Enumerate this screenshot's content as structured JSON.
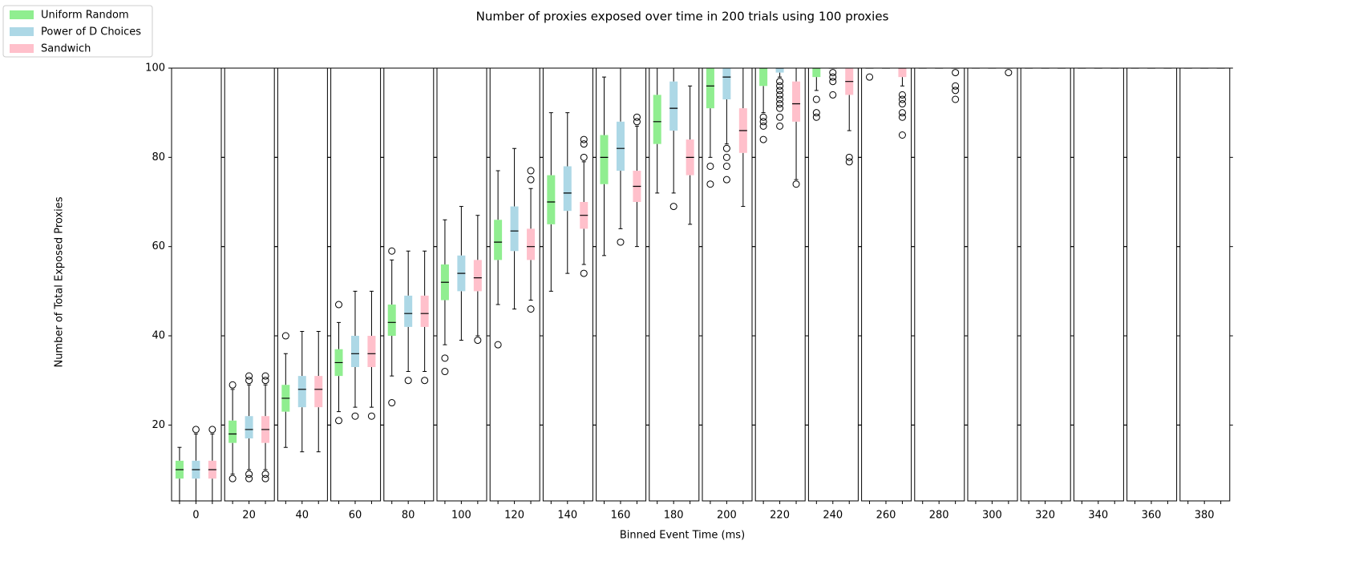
{
  "chart_data": {
    "type": "box",
    "title": "Number of proxies exposed over time in 200 trials using 100 proxies",
    "x_label": "Binned Event Time (ms)",
    "y_label": "Number of Total Exposed Proxies",
    "categories": [
      0,
      20,
      40,
      60,
      80,
      100,
      120,
      140,
      160,
      180,
      200,
      220,
      240,
      260,
      280,
      300,
      320,
      340,
      360,
      380
    ],
    "ylim": [
      3,
      100
    ],
    "yticks": [
      20,
      40,
      60,
      80,
      100
    ],
    "legend": "upper-left",
    "series": [
      {
        "name": "Uniform Random",
        "color": "#90ee90",
        "boxes": [
          {
            "low": 1,
            "q1": 8,
            "median": 10,
            "q3": 12,
            "high": 15,
            "fliers": []
          },
          {
            "low": 9,
            "q1": 16,
            "median": 18,
            "q3": 21,
            "high": 28,
            "fliers": [
              29,
              8
            ]
          },
          {
            "low": 15,
            "q1": 23,
            "median": 26,
            "q3": 29,
            "high": 36,
            "fliers": [
              40
            ]
          },
          {
            "low": 23,
            "q1": 31,
            "median": 34,
            "q3": 37,
            "high": 43,
            "fliers": [
              47,
              21
            ]
          },
          {
            "low": 31,
            "q1": 40,
            "median": 43,
            "q3": 47,
            "high": 57,
            "fliers": [
              59,
              25
            ]
          },
          {
            "low": 38,
            "q1": 48,
            "median": 52,
            "q3": 56,
            "high": 66,
            "fliers": [
              35,
              32
            ]
          },
          {
            "low": 47,
            "q1": 57,
            "median": 61,
            "q3": 66,
            "high": 77,
            "fliers": [
              38
            ]
          },
          {
            "low": 50,
            "q1": 65,
            "median": 70,
            "q3": 76,
            "high": 90,
            "fliers": []
          },
          {
            "low": 58,
            "q1": 74,
            "median": 80,
            "q3": 85,
            "high": 98,
            "fliers": []
          },
          {
            "low": 72,
            "q1": 83,
            "median": 88,
            "q3": 94,
            "high": 100,
            "fliers": []
          },
          {
            "low": 80,
            "q1": 91,
            "median": 96,
            "q3": 100,
            "high": 100,
            "fliers": [
              78,
              74
            ]
          },
          {
            "low": 90,
            "q1": 96,
            "median": 100,
            "q3": 100,
            "high": 100,
            "fliers": [
              89,
              88,
              87,
              84
            ]
          },
          {
            "low": 95,
            "q1": 98,
            "median": 100,
            "q3": 100,
            "high": 100,
            "fliers": [
              93,
              90,
              89
            ]
          },
          {
            "low": 100,
            "q1": 100,
            "median": 100,
            "q3": 100,
            "high": 100,
            "fliers": [
              98
            ]
          },
          {
            "low": 100,
            "q1": 100,
            "median": 100,
            "q3": 100,
            "high": 100,
            "fliers": []
          },
          {
            "low": 100,
            "q1": 100,
            "median": 100,
            "q3": 100,
            "high": 100,
            "fliers": []
          },
          {
            "low": 100,
            "q1": 100,
            "median": 100,
            "q3": 100,
            "high": 100,
            "fliers": []
          },
          {
            "low": 100,
            "q1": 100,
            "median": 100,
            "q3": 100,
            "high": 100,
            "fliers": []
          },
          {
            "low": 100,
            "q1": 100,
            "median": 100,
            "q3": 100,
            "high": 100,
            "fliers": []
          },
          {
            "low": 100,
            "q1": 100,
            "median": 100,
            "q3": 100,
            "high": 100,
            "fliers": []
          }
        ]
      },
      {
        "name": "Power of D Choices",
        "color": "#add8e6",
        "boxes": [
          {
            "low": 1,
            "q1": 8,
            "median": 10,
            "q3": 12,
            "high": 18,
            "fliers": [
              19
            ]
          },
          {
            "low": 10,
            "q1": 17,
            "median": 19,
            "q3": 22,
            "high": 29,
            "fliers": [
              30,
              31,
              9,
              8
            ]
          },
          {
            "low": 14,
            "q1": 24,
            "median": 28,
            "q3": 31,
            "high": 41,
            "fliers": []
          },
          {
            "low": 24,
            "q1": 33,
            "median": 36,
            "q3": 40,
            "high": 50,
            "fliers": [
              22
            ]
          },
          {
            "low": 32,
            "q1": 42,
            "median": 45,
            "q3": 49,
            "high": 59,
            "fliers": [
              30
            ]
          },
          {
            "low": 39,
            "q1": 50,
            "median": 54,
            "q3": 58,
            "high": 69,
            "fliers": []
          },
          {
            "low": 46,
            "q1": 59,
            "median": 63.5,
            "q3": 69,
            "high": 82,
            "fliers": []
          },
          {
            "low": 54,
            "q1": 68,
            "median": 72,
            "q3": 78,
            "high": 90,
            "fliers": []
          },
          {
            "low": 64,
            "q1": 77,
            "median": 82,
            "q3": 88,
            "high": 100,
            "fliers": [
              61
            ]
          },
          {
            "low": 72,
            "q1": 86,
            "median": 91,
            "q3": 97,
            "high": 100,
            "fliers": [
              69
            ]
          },
          {
            "low": 83,
            "q1": 93,
            "median": 98,
            "q3": 100,
            "high": 100,
            "fliers": [
              82,
              80,
              78,
              75
            ]
          },
          {
            "low": 98,
            "q1": 99,
            "median": 100,
            "q3": 100,
            "high": 100,
            "fliers": [
              97,
              96,
              95,
              94,
              93,
              92,
              91,
              89,
              87
            ]
          },
          {
            "low": 100,
            "q1": 100,
            "median": 100,
            "q3": 100,
            "high": 100,
            "fliers": [
              99,
              98,
              97,
              94
            ]
          },
          {
            "low": 100,
            "q1": 100,
            "median": 100,
            "q3": 100,
            "high": 100,
            "fliers": []
          },
          {
            "low": 100,
            "q1": 100,
            "median": 100,
            "q3": 100,
            "high": 100,
            "fliers": []
          },
          {
            "low": 100,
            "q1": 100,
            "median": 100,
            "q3": 100,
            "high": 100,
            "fliers": []
          },
          {
            "low": 100,
            "q1": 100,
            "median": 100,
            "q3": 100,
            "high": 100,
            "fliers": []
          },
          {
            "low": 100,
            "q1": 100,
            "median": 100,
            "q3": 100,
            "high": 100,
            "fliers": []
          },
          {
            "low": 100,
            "q1": 100,
            "median": 100,
            "q3": 100,
            "high": 100,
            "fliers": []
          },
          {
            "low": 100,
            "q1": 100,
            "median": 100,
            "q3": 100,
            "high": 100,
            "fliers": []
          }
        ]
      },
      {
        "name": "Sandwich",
        "color": "#ffc0cb",
        "boxes": [
          {
            "low": 1,
            "q1": 8,
            "median": 10,
            "q3": 12,
            "high": 18,
            "fliers": [
              19
            ]
          },
          {
            "low": 10,
            "q1": 16,
            "median": 19,
            "q3": 22,
            "high": 29,
            "fliers": [
              30,
              31,
              9,
              8
            ]
          },
          {
            "low": 14,
            "q1": 24,
            "median": 28,
            "q3": 31,
            "high": 41,
            "fliers": []
          },
          {
            "low": 24,
            "q1": 33,
            "median": 36,
            "q3": 40,
            "high": 50,
            "fliers": [
              22
            ]
          },
          {
            "low": 32,
            "q1": 42,
            "median": 45,
            "q3": 49,
            "high": 59,
            "fliers": [
              30
            ]
          },
          {
            "low": 40,
            "q1": 50,
            "median": 53,
            "q3": 57,
            "high": 67,
            "fliers": [
              39
            ]
          },
          {
            "low": 48,
            "q1": 57,
            "median": 60,
            "q3": 64,
            "high": 73,
            "fliers": [
              77,
              75,
              46
            ]
          },
          {
            "low": 56,
            "q1": 64,
            "median": 67,
            "q3": 70,
            "high": 79,
            "fliers": [
              84,
              83,
              80,
              54
            ]
          },
          {
            "low": 60,
            "q1": 70,
            "median": 73.5,
            "q3": 77,
            "high": 87,
            "fliers": [
              89,
              88
            ]
          },
          {
            "low": 65,
            "q1": 76,
            "median": 80,
            "q3": 84,
            "high": 96,
            "fliers": []
          },
          {
            "low": 69,
            "q1": 81,
            "median": 86,
            "q3": 91,
            "high": 100,
            "fliers": []
          },
          {
            "low": 75,
            "q1": 88,
            "median": 92,
            "q3": 97,
            "high": 100,
            "fliers": [
              74
            ]
          },
          {
            "low": 86,
            "q1": 94,
            "median": 97,
            "q3": 100,
            "high": 100,
            "fliers": [
              80,
              79
            ]
          },
          {
            "low": 96,
            "q1": 98,
            "median": 100,
            "q3": 100,
            "high": 100,
            "fliers": [
              94,
              93,
              92,
              90,
              89,
              85
            ]
          },
          {
            "low": 100,
            "q1": 100,
            "median": 100,
            "q3": 100,
            "high": 100,
            "fliers": [
              99,
              96,
              95,
              93
            ]
          },
          {
            "low": 100,
            "q1": 100,
            "median": 100,
            "q3": 100,
            "high": 100,
            "fliers": [
              99
            ]
          },
          {
            "low": 100,
            "q1": 100,
            "median": 100,
            "q3": 100,
            "high": 100,
            "fliers": []
          },
          {
            "low": 100,
            "q1": 100,
            "median": 100,
            "q3": 100,
            "high": 100,
            "fliers": []
          },
          {
            "low": 100,
            "q1": 100,
            "median": 100,
            "q3": 100,
            "high": 100,
            "fliers": []
          },
          {
            "low": 100,
            "q1": 100,
            "median": 100,
            "q3": 100,
            "high": 100,
            "fliers": []
          }
        ]
      }
    ]
  }
}
